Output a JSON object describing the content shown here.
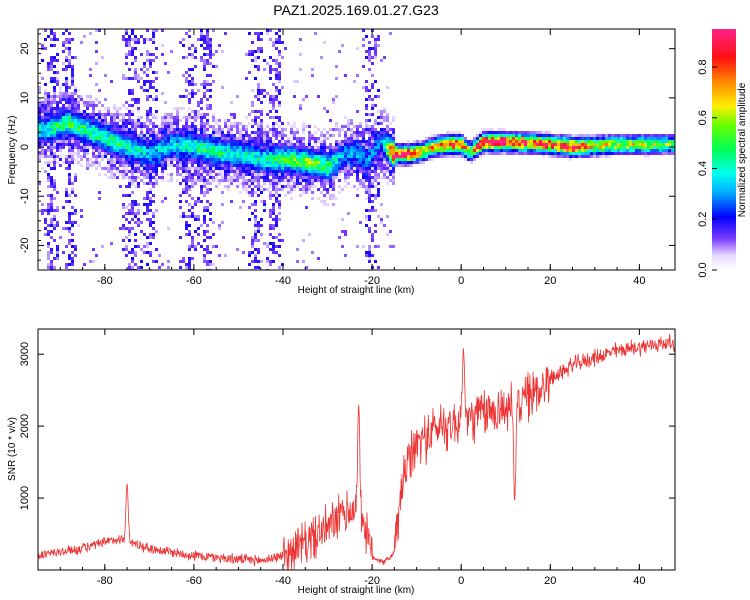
{
  "title": "PAZ1.2025.169.01.27.G23",
  "chart_data": [
    {
      "type": "heatmap",
      "xlabel": "Height of straight line (km)",
      "ylabel": "Frequency (Hz)",
      "xlim": [
        -95,
        48
      ],
      "ylim": [
        -25,
        24
      ],
      "xticks": [
        "-80",
        "-60",
        "-40",
        "-20",
        "0",
        "20",
        "40"
      ],
      "yticks": [
        "-20",
        "-10",
        "0",
        "10",
        "20"
      ],
      "colorbar": {
        "label": "Normalized spectral amplitude",
        "range": [
          0.0,
          0.95
        ],
        "ticks": [
          "0.0",
          "0.2",
          "0.4",
          "0.6",
          "0.8"
        ],
        "colormap": "rainbow (white, purple, blue, cyan, green, yellow, orange, red, pink)"
      },
      "ridge": {
        "description": "dominant frequency track",
        "x": [
          -93,
          -88,
          -83,
          -78,
          -73,
          -70,
          -65,
          -60,
          -55,
          -50,
          -45,
          -40,
          -35,
          -30,
          -27,
          -24,
          -21,
          -18,
          -15,
          -12,
          -9,
          -6,
          -3,
          0,
          2,
          5,
          10,
          15,
          20,
          25,
          30,
          35,
          40,
          45,
          48
        ],
        "y": [
          3.5,
          5,
          3,
          1,
          -0.5,
          -1.5,
          0.5,
          0,
          -1,
          -1.5,
          -2.5,
          -2.5,
          -3,
          -4,
          -2,
          -1,
          -3,
          1,
          -1.5,
          -1.5,
          -1,
          0,
          0.5,
          0.5,
          -1,
          1,
          1,
          0.8,
          0.5,
          0,
          0.2,
          0.5,
          0.5,
          0.5,
          0.5
        ],
        "peak_amplitude": [
          0.4,
          0.5,
          0.45,
          0.45,
          0.4,
          0.35,
          0.35,
          0.45,
          0.45,
          0.4,
          0.4,
          0.5,
          0.55,
          0.5,
          0.3,
          0.3,
          0.3,
          0.25,
          0.9,
          0.9,
          0.7,
          0.7,
          0.8,
          0.85,
          0.6,
          0.95,
          0.95,
          0.8,
          0.8,
          0.9,
          0.65,
          0.6,
          0.6,
          0.55,
          0.5
        ]
      }
    },
    {
      "type": "line",
      "xlabel": "Height of straight line (km)",
      "ylabel": "SNR (10 * v/v)",
      "xlim": [
        -95,
        48
      ],
      "ylim": [
        0,
        3350
      ],
      "xticks": [
        "-80",
        "-60",
        "-40",
        "-20",
        "0",
        "20",
        "40"
      ],
      "yticks": [
        "1000",
        "2000",
        "3000"
      ],
      "color": "#ee3333",
      "envelope": {
        "x": [
          -95,
          -85,
          -80,
          -76,
          -75,
          -70,
          -60,
          -50,
          -45,
          -40,
          -35,
          -30,
          -27,
          -24,
          -22,
          -20,
          -17,
          -15,
          -13,
          -10,
          -5,
          0,
          5,
          10,
          15,
          20,
          25,
          30,
          35,
          40,
          45,
          48
        ],
        "y": [
          200,
          300,
          380,
          450,
          400,
          300,
          200,
          150,
          130,
          200,
          380,
          580,
          750,
          850,
          700,
          180,
          110,
          250,
          1300,
          1750,
          2000,
          2050,
          2180,
          2250,
          2400,
          2650,
          2850,
          2950,
          3050,
          3100,
          3150,
          3150
        ]
      },
      "spikes": [
        {
          "x": -75,
          "y": 1200
        },
        {
          "x": -23,
          "y": 2300
        },
        {
          "x": 0.5,
          "y": 3080
        },
        {
          "x": 12,
          "y": 950
        }
      ]
    }
  ]
}
